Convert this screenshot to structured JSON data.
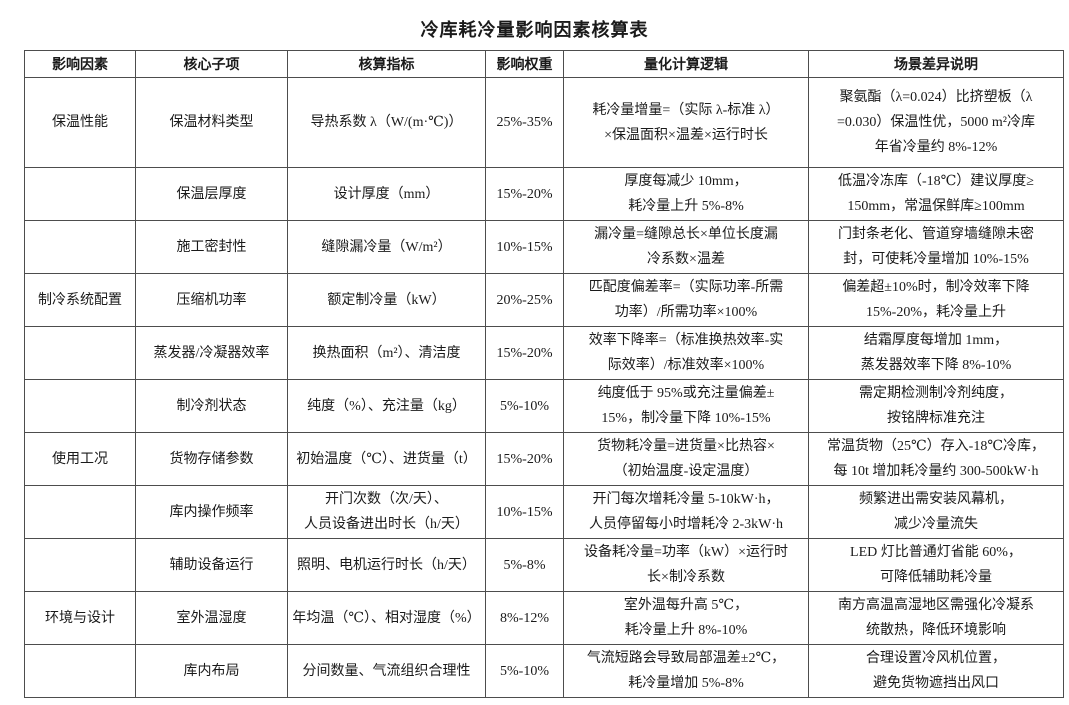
{
  "page": {
    "title": "冷库耗冷量影响因素核算表"
  },
  "table": {
    "headers": [
      "影响因素",
      "核心子项",
      "核算指标",
      "影响权重",
      "量化计算逻辑",
      "场景差异说明"
    ],
    "rows": [
      {
        "factor": "保温性能",
        "sub_item": "保温材料类型",
        "indicator": [
          "导热系数 λ（W/(m·℃)）"
        ],
        "weight": "25%-35%",
        "logic": [
          "耗冷量增量=（实际 λ-标准 λ）",
          "×保温面积×温差×运行时长"
        ],
        "scenario": [
          "聚氨酯（λ=0.024）比挤塑板（λ",
          "=0.030）保温性优，5000 m²冷库",
          "年省冷量约 8%-12%"
        ]
      },
      {
        "factor": "",
        "sub_item": "保温层厚度",
        "indicator": [
          "设计厚度（mm）"
        ],
        "weight": "15%-20%",
        "logic": [
          "厚度每减少 10mm，",
          "耗冷量上升 5%-8%"
        ],
        "scenario": [
          "低温冷冻库（-18℃）建议厚度≥",
          "150mm，常温保鲜库≥100mm"
        ]
      },
      {
        "factor": "",
        "sub_item": "施工密封性",
        "indicator": [
          "缝隙漏冷量（W/m²）"
        ],
        "weight": "10%-15%",
        "logic": [
          "漏冷量=缝隙总长×单位长度漏",
          "冷系数×温差"
        ],
        "scenario": [
          "门封条老化、管道穿墙缝隙未密",
          "封，可使耗冷量增加 10%-15%"
        ]
      },
      {
        "factor": "制冷系统配置",
        "sub_item": "压缩机功率",
        "indicator": [
          "额定制冷量（kW）"
        ],
        "weight": "20%-25%",
        "logic": [
          "匹配度偏差率=（实际功率-所需",
          "功率）/所需功率×100%"
        ],
        "scenario": [
          "偏差超±10%时，制冷效率下降",
          "15%-20%，耗冷量上升"
        ]
      },
      {
        "factor": "",
        "sub_item": "蒸发器/冷凝器效率",
        "indicator": [
          "换热面积（m²）、清洁度"
        ],
        "weight": "15%-20%",
        "logic": [
          "效率下降率=（标准换热效率-实",
          "际效率）/标准效率×100%"
        ],
        "scenario": [
          "结霜厚度每增加 1mm，",
          "蒸发器效率下降 8%-10%"
        ]
      },
      {
        "factor": "",
        "sub_item": "制冷剂状态",
        "indicator": [
          "纯度（%）、充注量（kg）"
        ],
        "weight": "5%-10%",
        "logic": [
          "纯度低于 95%或充注量偏差±",
          "15%，制冷量下降 10%-15%"
        ],
        "scenario": [
          "需定期检测制冷剂纯度，",
          "按铭牌标准充注"
        ]
      },
      {
        "factor": "使用工况",
        "sub_item": "货物存储参数",
        "indicator": [
          "初始温度（℃）、进货量（t）"
        ],
        "weight": "15%-20%",
        "logic": [
          "货物耗冷量=进货量×比热容×",
          "（初始温度-设定温度）"
        ],
        "scenario": [
          "常温货物（25℃）存入-18℃冷库，",
          "每 10t 增加耗冷量约 300-500kW·h"
        ]
      },
      {
        "factor": "",
        "sub_item": "库内操作频率",
        "indicator": [
          "开门次数（次/天）、",
          "人员设备进出时长（h/天）"
        ],
        "weight": "10%-15%",
        "logic": [
          "开门每次增耗冷量 5-10kW·h，",
          "人员停留每小时增耗冷 2-3kW·h"
        ],
        "scenario": [
          "频繁进出需安装风幕机，",
          "减少冷量流失"
        ]
      },
      {
        "factor": "",
        "sub_item": "辅助设备运行",
        "indicator": [
          "照明、电机运行时长（h/天）"
        ],
        "weight": "5%-8%",
        "logic": [
          "设备耗冷量=功率（kW）×运行时",
          "长×制冷系数"
        ],
        "scenario": [
          "LED 灯比普通灯省能 60%，",
          "可降低辅助耗冷量"
        ]
      },
      {
        "factor": "环境与设计",
        "sub_item": "室外温湿度",
        "indicator": [
          "年均温（℃）、相对湿度（%）"
        ],
        "weight": "8%-12%",
        "logic": [
          "室外温每升高 5℃，",
          "耗冷量上升 8%-10%"
        ],
        "scenario": [
          "南方高温高湿地区需强化冷凝系",
          "统散热，降低环境影响"
        ]
      },
      {
        "factor": "",
        "sub_item": "库内布局",
        "indicator": [
          "分间数量、气流组织合理性"
        ],
        "weight": "5%-10%",
        "logic": [
          "气流短路会导致局部温差±2℃，",
          "耗冷量增加 5%-8%"
        ],
        "scenario": [
          "合理设置冷风机位置，",
          "避免货物遮挡出风口"
        ]
      }
    ]
  }
}
